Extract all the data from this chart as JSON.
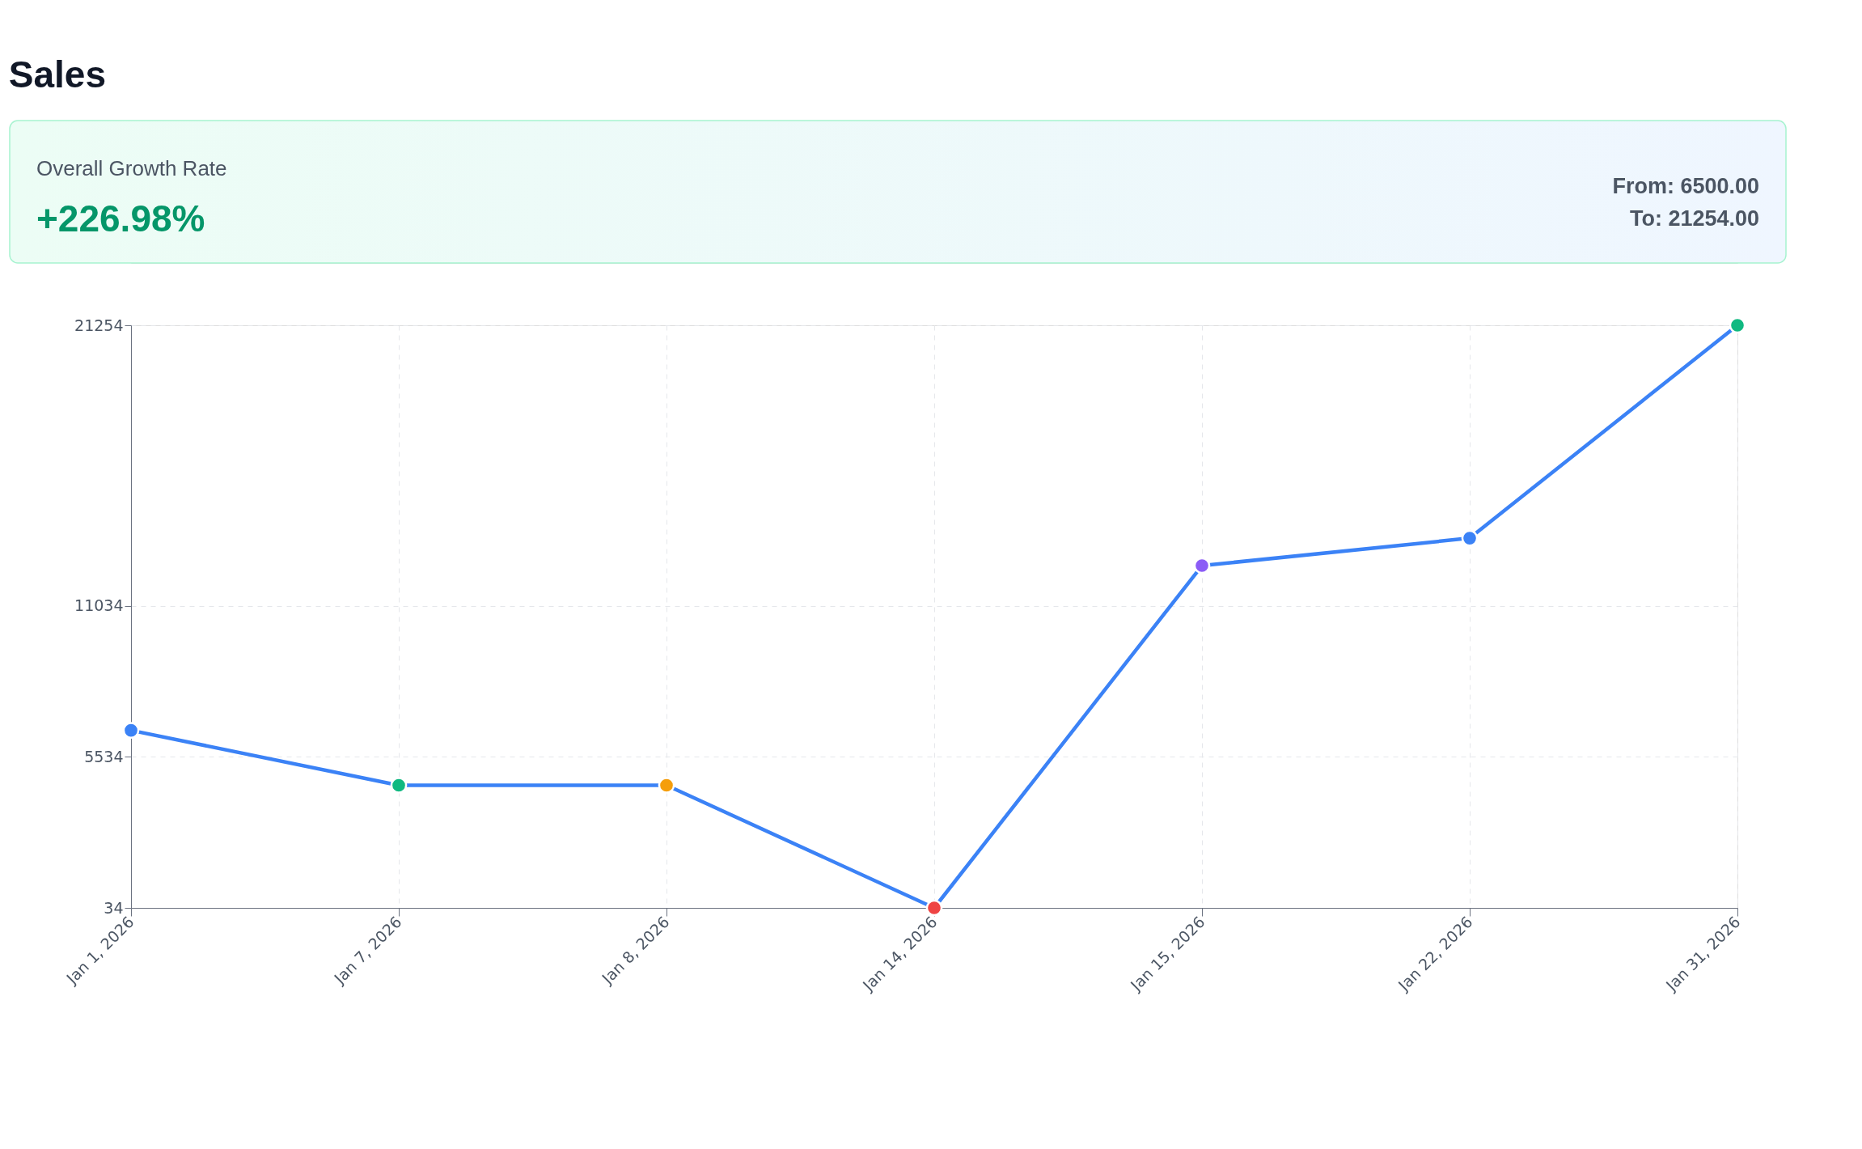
{
  "chart_data": {
    "type": "line",
    "title": "Sales",
    "annotations": [
      "Overall Growth Rate",
      "+226.98%",
      "From: 6500.00",
      "To: 21254.00"
    ],
    "categories": [
      "Jan 1, 2026",
      "Jan 7, 2026",
      "Jan 8, 2026",
      "Jan 14, 2026",
      "Jan 15, 2026",
      "Jan 22, 2026",
      "Jan 31, 2026"
    ],
    "series": [
      {
        "color": "#3b82f6",
        "values": [
          6500,
          4500,
          4500,
          34,
          12500,
          13500,
          21254
        ],
        "colors": [
          "#3b82f6",
          "#10b981",
          "#f59e0b",
          "#ef4444",
          "#8b5cf6",
          "#3b82f6",
          "#10b981"
        ]
      }
    ],
    "ylim": [
      34,
      21254
    ],
    "yticks": [
      34,
      5534,
      11034,
      21254
    ],
    "grid": true,
    "marker": "circle",
    "line_style": "solid"
  }
}
